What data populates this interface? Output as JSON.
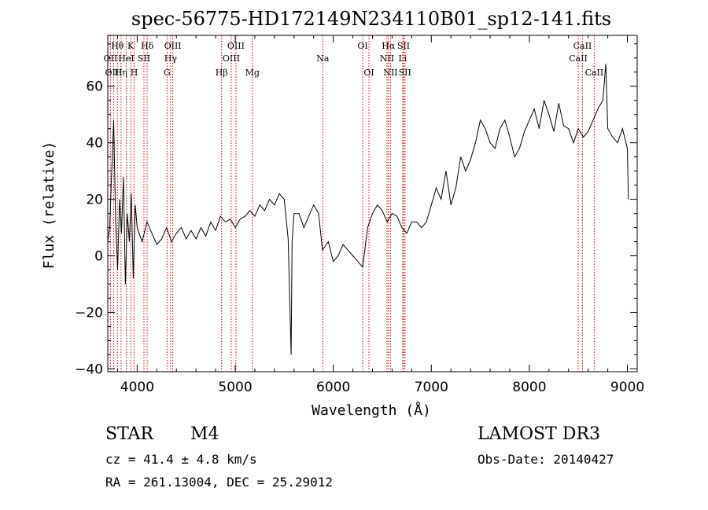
{
  "chart_data": {
    "type": "line",
    "title": "spec-56775-HD172149N234110B01_sp12-141.fits",
    "xlabel": "Wavelength (Å)",
    "ylabel": "Flux (relative)",
    "xlim": [
      3700,
      9100
    ],
    "ylim": [
      -41,
      78
    ],
    "xticks": [
      4000,
      5000,
      6000,
      7000,
      8000,
      9000
    ],
    "yticks": [
      -40,
      -20,
      0,
      20,
      40,
      60
    ],
    "grid": false,
    "series": [
      {
        "color": "#000000",
        "x": [
          3700,
          3720,
          3740,
          3760,
          3780,
          3800,
          3820,
          3840,
          3860,
          3880,
          3900,
          3920,
          3940,
          3960,
          3980,
          4000,
          4050,
          4100,
          4150,
          4200,
          4250,
          4300,
          4350,
          4400,
          4450,
          4500,
          4550,
          4600,
          4650,
          4700,
          4750,
          4800,
          4850,
          4900,
          4950,
          5000,
          5050,
          5100,
          5150,
          5200,
          5250,
          5300,
          5350,
          5400,
          5450,
          5500,
          5540,
          5570,
          5580,
          5600,
          5650,
          5700,
          5750,
          5800,
          5850,
          5890,
          5950,
          6000,
          6050,
          6100,
          6150,
          6200,
          6250,
          6300,
          6350,
          6400,
          6450,
          6500,
          6550,
          6600,
          6650,
          6700,
          6750,
          6800,
          6850,
          6900,
          6950,
          7000,
          7050,
          7100,
          7150,
          7200,
          7250,
          7300,
          7350,
          7400,
          7450,
          7500,
          7550,
          7600,
          7650,
          7700,
          7750,
          7800,
          7850,
          7900,
          7950,
          8000,
          8050,
          8100,
          8150,
          8200,
          8250,
          8300,
          8350,
          8400,
          8450,
          8500,
          8550,
          8600,
          8650,
          8700,
          8750,
          8780,
          8800,
          8850,
          8900,
          8950,
          9000,
          9010
        ],
        "y": [
          5,
          10,
          30,
          48,
          12,
          -5,
          20,
          8,
          28,
          -10,
          15,
          5,
          22,
          -8,
          18,
          10,
          5,
          12,
          8,
          4,
          6,
          10,
          5,
          8,
          10,
          6,
          9,
          6,
          10,
          7,
          12,
          9,
          14,
          12,
          13,
          10,
          13,
          14,
          16,
          14,
          18,
          16,
          20,
          18,
          22,
          20,
          6,
          -35,
          5,
          15,
          15,
          10,
          14,
          18,
          15,
          2,
          5,
          -2,
          0,
          4,
          2,
          0,
          -2,
          -4,
          10,
          15,
          18,
          16,
          12,
          15,
          14,
          10,
          8,
          12,
          12,
          10,
          12,
          18,
          24,
          20,
          30,
          18,
          24,
          35,
          30,
          34,
          40,
          48,
          45,
          40,
          38,
          45,
          48,
          42,
          35,
          38,
          44,
          48,
          52,
          45,
          55,
          50,
          44,
          54,
          46,
          45,
          40,
          45,
          42,
          44,
          48,
          52,
          55,
          68,
          45,
          42,
          40,
          45,
          38,
          20
        ],
        "y_labels_note": ""
      }
    ],
    "spectral_lines": [
      {
        "label": "Hθ",
        "x": 3798,
        "row": 1
      },
      {
        "label": "OII",
        "x": 3727,
        "row": 2
      },
      {
        "label": "OIII",
        "x": 3760,
        "row": 3
      },
      {
        "label": "K",
        "x": 3934,
        "row": 1
      },
      {
        "label": "HeI",
        "x": 3889,
        "row": 2
      },
      {
        "label": "Hη",
        "x": 3835,
        "row": 3
      },
      {
        "label": "Hδ",
        "x": 4102,
        "row": 1
      },
      {
        "label": "SII",
        "x": 4069,
        "row": 2
      },
      {
        "label": "H",
        "x": 3969,
        "row": 3
      },
      {
        "label": "OIII",
        "x": 4363,
        "row": 1
      },
      {
        "label": "Hγ",
        "x": 4341,
        "row": 2
      },
      {
        "label": "G",
        "x": 4305,
        "row": 3
      },
      {
        "label": "OIII",
        "x": 5007,
        "row": 1
      },
      {
        "label": "OIII",
        "x": 4959,
        "row": 2
      },
      {
        "label": "Hβ",
        "x": 4861,
        "row": 3
      },
      {
        "label": "Mg",
        "x": 5175,
        "row": 3
      },
      {
        "label": "Na",
        "x": 5893,
        "row": 2
      },
      {
        "label": "OI",
        "x": 6300,
        "row": 1
      },
      {
        "label": "OI",
        "x": 6364,
        "row": 3
      },
      {
        "label": "Hα",
        "x": 6563,
        "row": 1
      },
      {
        "label": "NII",
        "x": 6548,
        "row": 2
      },
      {
        "label": "NII",
        "x": 6584,
        "row": 3
      },
      {
        "label": "SII",
        "x": 6717,
        "row": 1
      },
      {
        "label": "Li",
        "x": 6708,
        "row": 2
      },
      {
        "label": "SII",
        "x": 6731,
        "row": 3
      },
      {
        "label": "CaII",
        "x": 8542,
        "row": 1
      },
      {
        "label": "CaII",
        "x": 8498,
        "row": 2
      },
      {
        "label": "CaII",
        "x": 8662,
        "row": 3
      }
    ]
  },
  "info": {
    "class_label": "STAR",
    "subclass": "M4",
    "survey": "LAMOST DR3",
    "cz": "cz = 41.4 ± 4.8 km/s",
    "obs_date": "Obs-Date: 20140427",
    "coords": "RA = 261.13004, DEC =  25.29012"
  }
}
